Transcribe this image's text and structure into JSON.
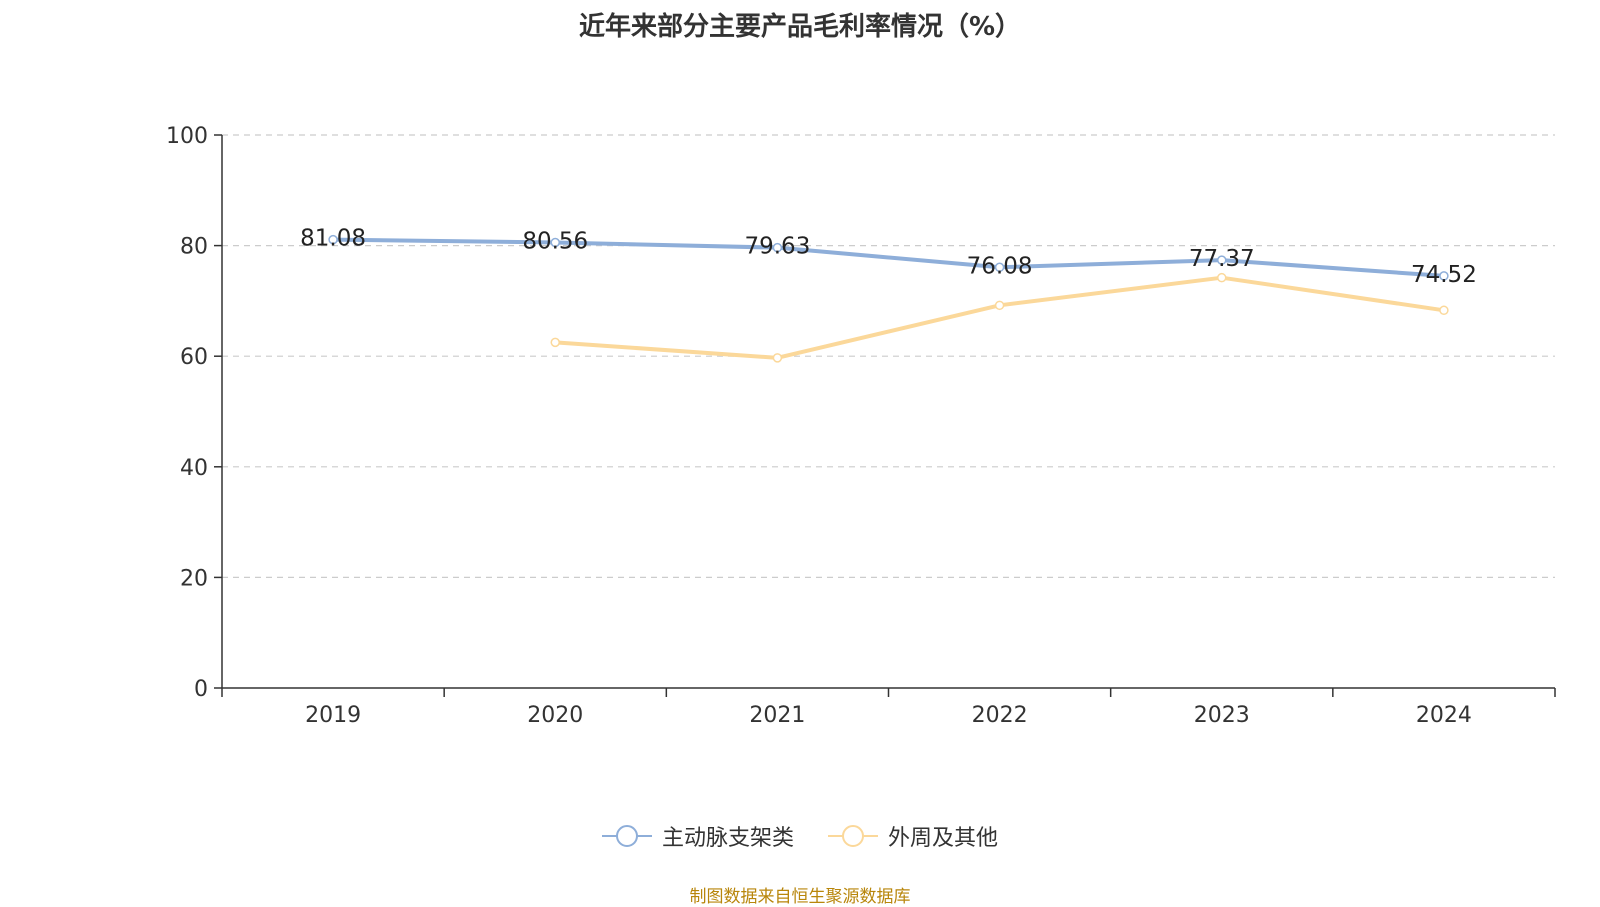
{
  "chart_data": {
    "type": "line",
    "title": "近年来部分主要产品毛利率情况（%）",
    "categories": [
      "2019",
      "2020",
      "2021",
      "2022",
      "2023",
      "2024"
    ],
    "series": [
      {
        "name": "主动脉支架类",
        "color": "#8eaed9",
        "values": [
          81.08,
          80.56,
          79.63,
          76.08,
          77.37,
          74.52
        ],
        "show_labels": true
      },
      {
        "name": "外周及其他",
        "color": "#fbd89a",
        "values": [
          null,
          62.5,
          59.7,
          69.2,
          74.2,
          68.3
        ],
        "show_labels": false
      }
    ],
    "ylim": [
      0,
      100
    ],
    "yticks": [
      0,
      20,
      40,
      60,
      80,
      100
    ],
    "grid": true,
    "legend_position": "bottom"
  },
  "source_note": "制图数据来自恒生聚源数据库"
}
